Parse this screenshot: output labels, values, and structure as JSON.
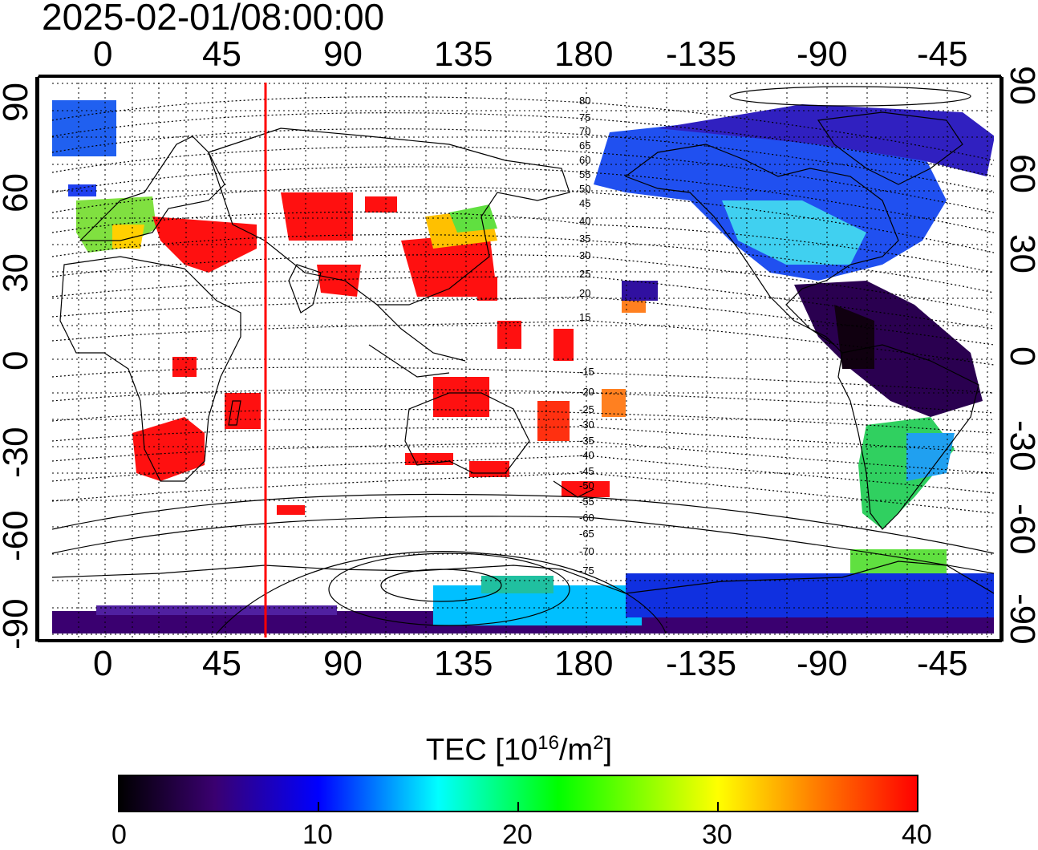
{
  "title": "2025-02-01/08:00:00",
  "map": {
    "lon_labels_top": [
      "0",
      "45",
      "90",
      "135",
      "180",
      "-135",
      "-90",
      "-45"
    ],
    "lon_labels_bottom": [
      "0",
      "45",
      "90",
      "135",
      "180",
      "-135",
      "-90",
      "-45"
    ],
    "lat_labels_left": [
      "90",
      "60",
      "30",
      "0",
      "-30",
      "-60",
      "-90"
    ],
    "lat_labels_right": [
      "90",
      "60",
      "30",
      "0",
      "-30",
      "-60",
      "-90"
    ],
    "contour_labels": [
      "80",
      "75",
      "70",
      "65",
      "60",
      "55",
      "50",
      "45",
      "40",
      "35",
      "30",
      "25",
      "20",
      "15",
      "-15",
      "-20",
      "-25",
      "-30",
      "-35",
      "-40",
      "-45",
      "-50",
      "-55",
      "-60",
      "-65",
      "-70",
      "-75"
    ],
    "marker_line_color": "#ff0000"
  },
  "colorbar": {
    "title_prefix": "TEC  [10",
    "title_sup1": "16",
    "title_mid": "/m",
    "title_sup2": "2",
    "title_suffix": "]",
    "ticks": [
      "0",
      "10",
      "20",
      "30",
      "40"
    ],
    "range": [
      0,
      40
    ],
    "colors": [
      "#000000",
      "#3a0070",
      "#0000ff",
      "#00ffff",
      "#00ff00",
      "#ffff00",
      "#ff8000",
      "#ff0000"
    ]
  }
}
